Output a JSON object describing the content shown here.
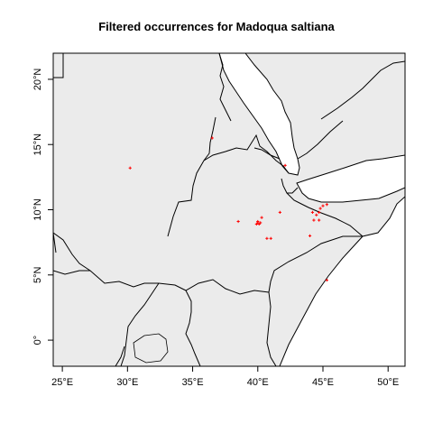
{
  "title": "Filtered occurrences for Madoqua saltiana",
  "colors": {
    "land": "#ebebeb",
    "border": "#000000",
    "sea": "#ffffff",
    "points": "#ff0000"
  },
  "map": {
    "lon_range": [
      24.3,
      51.3
    ],
    "lat_range": [
      -2,
      22
    ]
  },
  "x_axis": {
    "ticks": [
      {
        "value": 25,
        "label": "25°E"
      },
      {
        "value": 30,
        "label": "30°E"
      },
      {
        "value": 35,
        "label": "35°E"
      },
      {
        "value": 40,
        "label": "40°E"
      },
      {
        "value": 45,
        "label": "45°E"
      },
      {
        "value": 50,
        "label": "50°E"
      }
    ]
  },
  "y_axis": {
    "ticks": [
      {
        "value": 0,
        "label": "0°"
      },
      {
        "value": 5,
        "label": "5°N"
      },
      {
        "value": 10,
        "label": "10°N"
      },
      {
        "value": 15,
        "label": "15°N"
      },
      {
        "value": 20,
        "label": "20°N"
      }
    ]
  },
  "occurrences": [
    {
      "lon": 30.2,
      "lat": 13.2
    },
    {
      "lon": 36.5,
      "lat": 15.5
    },
    {
      "lon": 42.1,
      "lat": 13.4
    },
    {
      "lon": 38.5,
      "lat": 9.1
    },
    {
      "lon": 40.0,
      "lat": 9.0
    },
    {
      "lon": 40.1,
      "lat": 8.9
    },
    {
      "lon": 40.0,
      "lat": 9.1
    },
    {
      "lon": 40.2,
      "lat": 9.0
    },
    {
      "lon": 39.9,
      "lat": 8.9
    },
    {
      "lon": 40.3,
      "lat": 9.4
    },
    {
      "lon": 40.7,
      "lat": 7.8
    },
    {
      "lon": 41.0,
      "lat": 7.8
    },
    {
      "lon": 41.7,
      "lat": 9.8
    },
    {
      "lon": 44.2,
      "lat": 9.8
    },
    {
      "lon": 44.5,
      "lat": 9.6
    },
    {
      "lon": 44.3,
      "lat": 9.2
    },
    {
      "lon": 44.7,
      "lat": 9.8
    },
    {
      "lon": 44.8,
      "lat": 10.1
    },
    {
      "lon": 44.7,
      "lat": 9.2
    },
    {
      "lon": 45.0,
      "lat": 10.3
    },
    {
      "lon": 45.3,
      "lat": 10.4
    },
    {
      "lon": 44.0,
      "lat": 8.0
    },
    {
      "lon": 45.3,
      "lat": 4.6
    }
  ]
}
